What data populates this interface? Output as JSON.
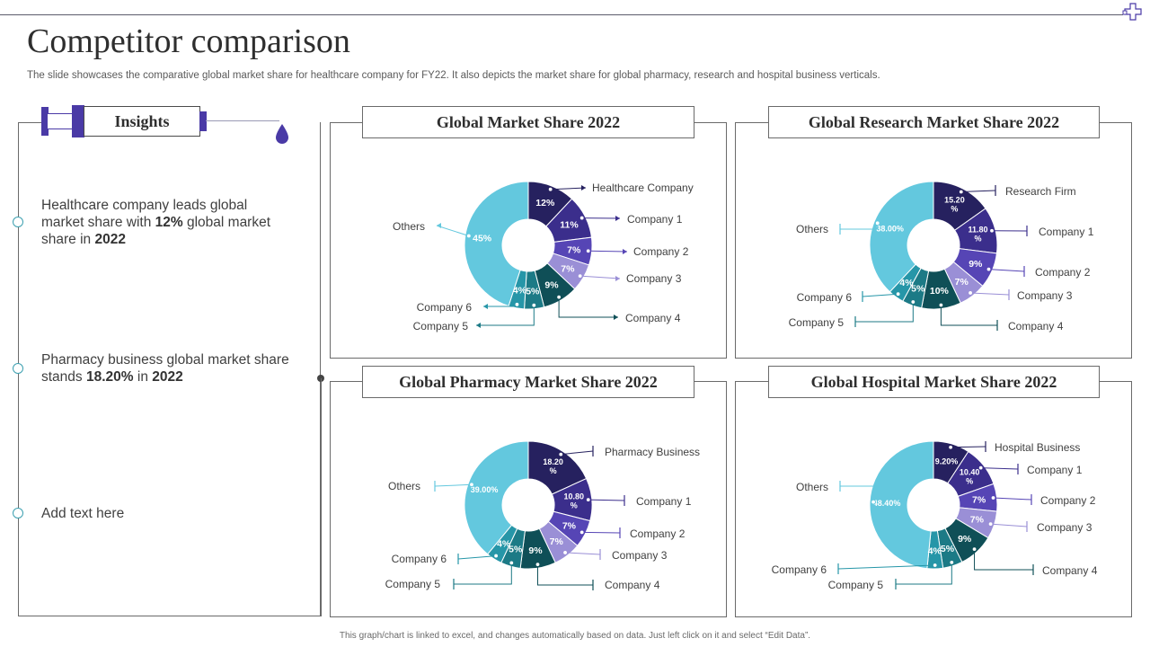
{
  "page": {
    "title": "Competitor comparison",
    "subtitle": "The slide showcases the comparative global market share for healthcare company for FY22. It also depicts the market share for global pharmacy, research and hospital business verticals.",
    "footer": "This graph/chart is linked to excel, and changes automatically based on data. Just left click on it and select “Edit Data”."
  },
  "insights": {
    "title": "Insights",
    "items": [
      {
        "pre": "Healthcare company leads global market share with ",
        "b1": "12%",
        "mid": " global market share in ",
        "b2": "2022"
      },
      {
        "pre": "Pharmacy business global market share stands ",
        "b1": "18.20%",
        "mid": " in ",
        "b2": "2022"
      },
      {
        "pre": "Add text here",
        "b1": "",
        "mid": "",
        "b2": ""
      }
    ]
  },
  "colors": {
    "slice1": "#26215f",
    "slice2": "#3b2e8c",
    "slice3": "#5645b5",
    "slice4": "#9a8fd6",
    "slice5": "#0f4f57",
    "slice6": "#1c7a86",
    "slice7": "#2696a8",
    "others": "#63c8de",
    "accent": "#4a3aa6"
  },
  "chart_data": [
    {
      "type": "pie",
      "title": "Global Market Share 2022",
      "categories": [
        "Healthcare Company",
        "Company 1",
        "Company 2",
        "Company 3",
        "Company 4",
        "Company 5",
        "Company 6",
        "Others"
      ],
      "values": [
        12,
        11,
        7,
        7,
        9,
        5,
        4,
        45
      ],
      "labels": [
        "12%",
        "11%",
        "7%",
        "7%",
        "9%",
        "5%",
        "4%",
        "45%"
      ]
    },
    {
      "type": "pie",
      "title": "Global Research Market Share 2022",
      "categories": [
        "Research Firm",
        "Company 1",
        "Company 2",
        "Company 3",
        "Company 4",
        "Company 5",
        "Company 6",
        "Others"
      ],
      "values": [
        15.2,
        11.8,
        9,
        7,
        10,
        5,
        4,
        38
      ],
      "labels": [
        "15.20 %",
        "11.80 %",
        "9%",
        "7%",
        "10%",
        "5%",
        "4%",
        "38.00%"
      ]
    },
    {
      "type": "pie",
      "title": "Global Pharmacy Market Share 2022",
      "categories": [
        "Pharmacy Business",
        "Company 1",
        "Company 2",
        "Company 3",
        "Company 4",
        "Company 5",
        "Company 6",
        "Others"
      ],
      "values": [
        18.2,
        10.8,
        7,
        7,
        9,
        5,
        4,
        39
      ],
      "labels": [
        "18.20 %",
        "10.80 %",
        "7%",
        "7%",
        "9%",
        "5%",
        "4%",
        "39.00%"
      ]
    },
    {
      "type": "pie",
      "title": "Global Hospital Market Share 2022",
      "categories": [
        "Hospital Business",
        "Company 1",
        "Company 2",
        "Company 3",
        "Company 4",
        "Company 5",
        "Company 6",
        "Others"
      ],
      "values": [
        9.2,
        10.4,
        7,
        7,
        9,
        5,
        4,
        48.4
      ],
      "labels": [
        "9.20%",
        "10.40 %",
        "7%",
        "7%",
        "9%",
        "5%",
        "4%",
        "48.40%"
      ]
    }
  ]
}
